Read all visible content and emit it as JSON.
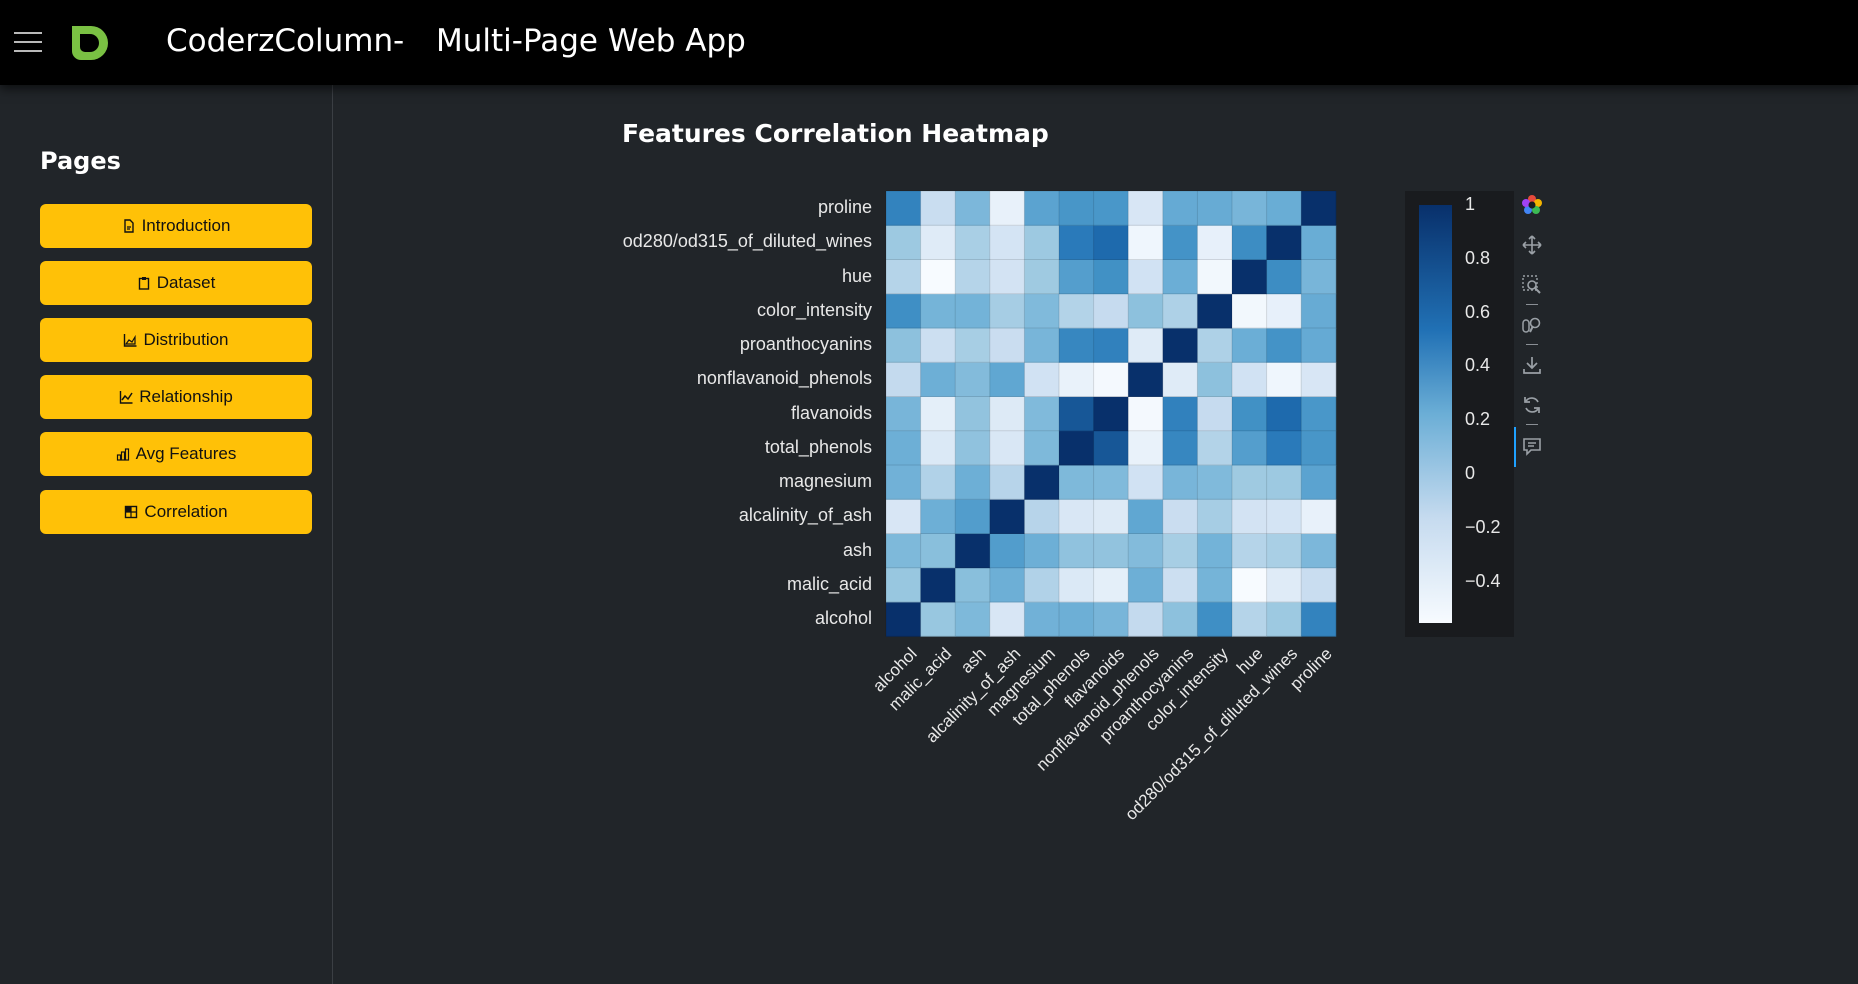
{
  "header": {
    "app_name": "CoderzColumn",
    "separator": "-",
    "app_subtitle": "Multi-Page Web App"
  },
  "sidebar": {
    "heading": "Pages",
    "items": [
      {
        "label": "Introduction",
        "icon": "file-icon"
      },
      {
        "label": "Dataset",
        "icon": "clipboard-icon"
      },
      {
        "label": "Distribution",
        "icon": "area-chart-icon"
      },
      {
        "label": "Relationship",
        "icon": "line-chart-icon"
      },
      {
        "label": "Avg Features",
        "icon": "bar-chart-icon"
      },
      {
        "label": "Correlation",
        "icon": "grid-icon"
      }
    ]
  },
  "main": {
    "title": "Features Correlation Heatmap"
  },
  "toolbar": {
    "tools": [
      "bokeh-logo-icon",
      "pan-icon",
      "box-zoom-icon",
      "wheel-zoom-icon",
      "save-icon",
      "reset-icon",
      "hover-icon"
    ]
  },
  "colors": {
    "topbar": "#000000",
    "background": "#212529",
    "button": "#ffc107",
    "cmap_low": "#f7fbff",
    "cmap_high": "#08306b"
  },
  "chart_data": {
    "type": "heatmap",
    "title": "Features Correlation Heatmap",
    "features": [
      "alcohol",
      "malic_acid",
      "ash",
      "alcalinity_of_ash",
      "magnesium",
      "total_phenols",
      "flavanoids",
      "nonflavanoid_phenols",
      "proanthocyanins",
      "color_intensity",
      "hue",
      "od280/od315_of_diluted_wines",
      "proline"
    ],
    "values": [
      [
        1.0,
        0.09,
        0.21,
        -0.31,
        0.27,
        0.29,
        0.24,
        -0.16,
        0.14,
        0.55,
        -0.07,
        0.07,
        0.64
      ],
      [
        0.09,
        1.0,
        0.16,
        0.29,
        -0.05,
        -0.34,
        -0.41,
        0.29,
        -0.22,
        0.25,
        -0.56,
        -0.37,
        -0.19
      ],
      [
        0.21,
        0.16,
        1.0,
        0.44,
        0.29,
        0.13,
        0.12,
        0.19,
        0.01,
        0.26,
        -0.07,
        0.0,
        0.22
      ],
      [
        -0.31,
        0.29,
        0.44,
        1.0,
        -0.08,
        -0.32,
        -0.35,
        0.36,
        -0.2,
        0.02,
        -0.27,
        -0.28,
        -0.44
      ],
      [
        0.27,
        -0.05,
        0.29,
        -0.08,
        1.0,
        0.21,
        0.2,
        -0.26,
        0.24,
        0.2,
        0.06,
        0.07,
        0.39
      ],
      [
        0.29,
        -0.34,
        0.13,
        -0.32,
        0.21,
        1.0,
        0.86,
        -0.45,
        0.61,
        -0.06,
        0.43,
        0.7,
        0.5
      ],
      [
        0.24,
        -0.41,
        0.12,
        -0.35,
        0.2,
        0.86,
        1.0,
        -0.54,
        0.65,
        -0.17,
        0.54,
        0.79,
        0.49
      ],
      [
        -0.16,
        0.29,
        0.19,
        0.36,
        -0.26,
        -0.45,
        -0.54,
        1.0,
        -0.37,
        0.14,
        -0.26,
        -0.5,
        -0.31
      ],
      [
        0.14,
        -0.22,
        0.01,
        -0.2,
        0.24,
        0.61,
        0.65,
        -0.37,
        1.0,
        -0.03,
        0.3,
        0.52,
        0.33
      ],
      [
        0.55,
        0.25,
        0.26,
        0.02,
        0.2,
        -0.06,
        -0.17,
        0.14,
        -0.03,
        1.0,
        -0.52,
        -0.43,
        0.32
      ],
      [
        -0.07,
        -0.56,
        -0.07,
        -0.27,
        0.06,
        0.43,
        0.54,
        -0.26,
        0.3,
        -0.52,
        1.0,
        0.57,
        0.24
      ],
      [
        0.07,
        -0.37,
        0.0,
        -0.28,
        0.07,
        0.7,
        0.79,
        -0.5,
        0.52,
        -0.43,
        0.57,
        1.0,
        0.31
      ],
      [
        0.64,
        -0.19,
        0.22,
        -0.44,
        0.39,
        0.5,
        0.49,
        -0.31,
        0.33,
        0.32,
        0.24,
        0.31,
        1.0
      ]
    ],
    "colorbar_ticks": [
      "1",
      "0.8",
      "0.6",
      "0.4",
      "0.2",
      "0",
      "−0.2",
      "−0.4"
    ],
    "colorbar_range": [
      -0.56,
      1.0
    ],
    "colormap": "Blues"
  }
}
